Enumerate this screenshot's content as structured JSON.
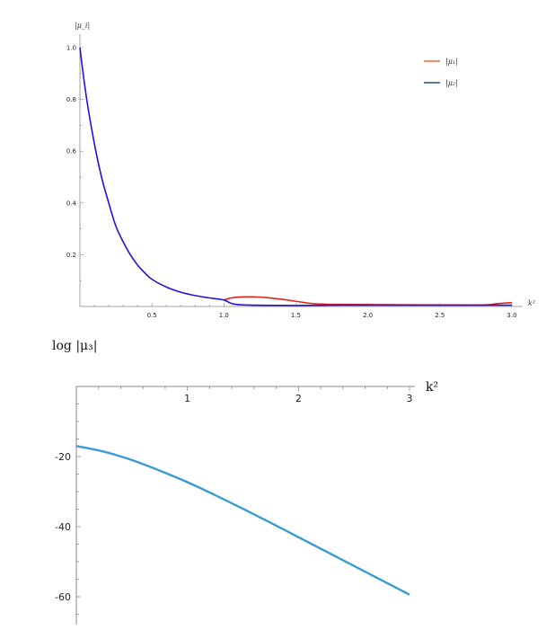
{
  "chart_data": [
    {
      "type": "line",
      "ylabel": "|μ_i|",
      "xlabel": "k²",
      "xlim": [
        0,
        3.0
      ],
      "ylim": [
        0,
        1.0
      ],
      "xticks": [
        "0.5",
        "1.0",
        "1.5",
        "2.0",
        "2.5",
        "3.0"
      ],
      "yticks": [
        "0.2",
        "0.4",
        "0.6",
        "0.8",
        "1.0"
      ],
      "legend": {
        "placement": "top-right"
      },
      "series": [
        {
          "name": "|μ₁|",
          "color": "#e2231a",
          "x": [
            1.0,
            1.05,
            1.1,
            1.15,
            1.2,
            1.25,
            1.3,
            1.35,
            1.4,
            1.45,
            1.5,
            1.55,
            1.6,
            1.65,
            1.7,
            1.75,
            1.8,
            2.0,
            2.5,
            2.8,
            2.9,
            3.0
          ],
          "y": [
            0.025,
            0.033,
            0.036,
            0.037,
            0.037,
            0.036,
            0.034,
            0.031,
            0.028,
            0.024,
            0.02,
            0.016,
            0.012,
            0.01,
            0.009,
            0.008,
            0.008,
            0.007,
            0.006,
            0.006,
            0.011,
            0.015
          ]
        },
        {
          "name": "|μ₂|",
          "color": "#2c0fd6",
          "x": [
            0,
            0.02,
            0.05,
            0.1,
            0.15,
            0.2,
            0.25,
            0.3,
            0.35,
            0.4,
            0.45,
            0.5,
            0.6,
            0.7,
            0.8,
            0.9,
            1.0,
            1.05,
            1.1,
            1.2,
            1.4,
            1.6,
            1.8,
            2.0,
            2.5,
            2.8,
            3.0
          ],
          "y": [
            1.0,
            0.91,
            0.79,
            0.63,
            0.5,
            0.4,
            0.31,
            0.25,
            0.2,
            0.16,
            0.13,
            0.105,
            0.075,
            0.055,
            0.042,
            0.033,
            0.025,
            0.012,
            0.007,
            0.005,
            0.004,
            0.004,
            0.005,
            0.005,
            0.005,
            0.005,
            0.005
          ]
        }
      ]
    },
    {
      "type": "line",
      "ylabel": "log |μ₃|",
      "xlabel": "k²",
      "xlim": [
        0,
        3
      ],
      "ylim": [
        -65,
        0
      ],
      "xticks": [
        "1",
        "2",
        "3"
      ],
      "yticks": [
        "-20",
        "-40",
        "-60"
      ],
      "series": [
        {
          "color": "#3a9bd2",
          "x": [
            0,
            0.25,
            0.5,
            0.75,
            1.0,
            1.25,
            1.5,
            1.75,
            2.0,
            2.25,
            2.5,
            2.75,
            3.0
          ],
          "y": [
            -17,
            -18.6,
            -21.0,
            -24.0,
            -27.3,
            -31.0,
            -34.9,
            -38.9,
            -43.0,
            -47.1,
            -51.2,
            -55.3,
            -59.4
          ]
        }
      ]
    }
  ]
}
